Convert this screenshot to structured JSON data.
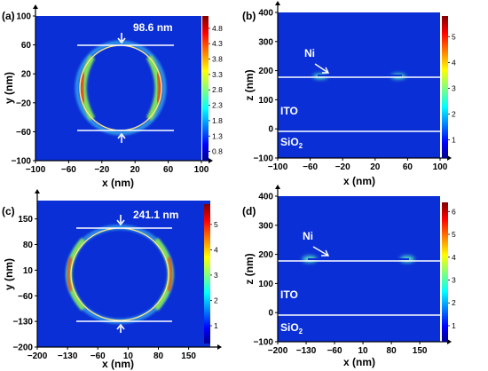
{
  "panels": [
    {
      "id": "a",
      "label": "(a)",
      "view": "top",
      "xlabel": "x (nm)",
      "ylabel": "y (nm)",
      "xticks": [
        "−100",
        "−60",
        "−20",
        "20",
        "60",
        "100"
      ],
      "yticks": [
        "100",
        "60",
        "20",
        "−20",
        "−60",
        "−100"
      ],
      "xlim": [
        -100,
        100
      ],
      "ylim": [
        -100,
        100
      ],
      "annotation": "98.6 nm",
      "colorbar_ticks": [
        "4.8",
        "4.3",
        "3.8",
        "3.3",
        "2.8",
        "2.3",
        "1.8",
        "1.3",
        "0.8"
      ],
      "colorbar_range": [
        0.5,
        5.2
      ]
    },
    {
      "id": "b",
      "label": "(b)",
      "view": "side",
      "xlabel": "x (nm)",
      "ylabel": "z (nm)",
      "xticks": [
        "−100",
        "−60",
        "−20",
        "20",
        "60",
        "100"
      ],
      "yticks": [
        "400",
        "300",
        "200",
        "100",
        "0",
        "−100"
      ],
      "xlim": [
        -100,
        100
      ],
      "ylim": [
        -100,
        400
      ],
      "labels": {
        "ni": "Ni",
        "ito": "ITO",
        "sio2_base": "SiO",
        "sio2_sub": "2"
      },
      "colorbar_ticks": [
        "5",
        "4",
        "3",
        "2",
        "1"
      ],
      "colorbar_range": [
        0.3,
        5.8
      ]
    },
    {
      "id": "c",
      "label": "(c)",
      "view": "top",
      "xlabel": "x (nm)",
      "ylabel": "y (nm)",
      "xticks": [
        "−200",
        "−130",
        "−60",
        "10",
        "80",
        "150"
      ],
      "yticks": [
        "150",
        "80",
        "10",
        "−60",
        "−130",
        "−200"
      ],
      "xlim": [
        -200,
        200
      ],
      "ylim": [
        -200,
        200
      ],
      "annotation": "241.1 nm",
      "colorbar_ticks": [
        "5",
        "4",
        "3",
        "2",
        "1"
      ],
      "colorbar_range": [
        0.3,
        5.8
      ]
    },
    {
      "id": "d",
      "label": "(d)",
      "view": "side",
      "xlabel": "x (nm)",
      "ylabel": "z (nm)",
      "xticks": [
        "−200",
        "−130",
        "−60",
        "10",
        "80",
        "150"
      ],
      "yticks": [
        "400",
        "300",
        "200",
        "100",
        "0",
        "−100"
      ],
      "xlim": [
        -200,
        200
      ],
      "ylim": [
        -100,
        400
      ],
      "labels": {
        "ni": "Ni",
        "ito": "ITO",
        "sio2_base": "SiO",
        "sio2_sub": "2"
      },
      "colorbar_ticks": [
        "6",
        "5",
        "4",
        "3",
        "2",
        "1"
      ],
      "colorbar_range": [
        0.3,
        6.4
      ]
    }
  ],
  "colors": {
    "field_background": "#0a2fd6",
    "guide_line": "#ffffff"
  }
}
